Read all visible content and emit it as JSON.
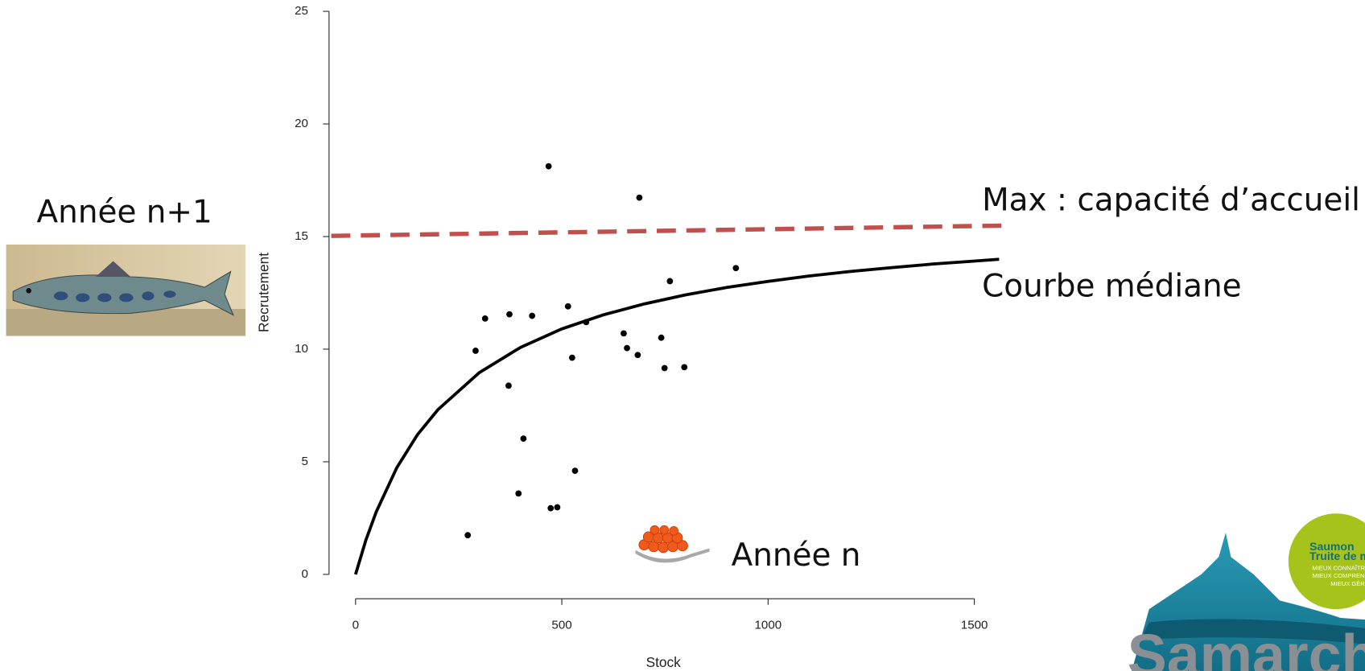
{
  "chart_data": {
    "type": "scatter",
    "xlabel": "Stock",
    "ylabel": "Recrutement",
    "xlim": [
      -60,
      1586
    ],
    "ylim": [
      0,
      25
    ],
    "xticks": [
      0,
      500,
      1000,
      1500
    ],
    "yticks": [
      0,
      5,
      10,
      15,
      20,
      25
    ],
    "grid": false,
    "points": {
      "color": "#000000",
      "x": [
        272,
        291,
        314,
        373,
        371,
        428,
        407,
        395,
        473,
        489,
        468,
        515,
        525,
        532,
        559,
        650,
        658,
        684,
        688,
        741,
        749,
        762,
        797,
        922
      ],
      "values": [
        1.74,
        9.93,
        11.36,
        11.55,
        8.38,
        11.48,
        6.03,
        3.59,
        2.94,
        2.98,
        18.12,
        11.9,
        9.62,
        4.6,
        11.2,
        10.7,
        10.05,
        9.74,
        16.73,
        10.51,
        9.16,
        13.02,
        9.2,
        13.6
      ]
    },
    "series": [
      {
        "name": "Max : capacité d’accueil",
        "color": "#c0504d",
        "dashed": true,
        "x": [
          -59,
          1582
        ],
        "values": [
          15.03,
          15.49
        ]
      },
      {
        "name": "Courbe médiane",
        "color": "#000000",
        "dashed": false,
        "x": [
          0,
          25,
          50,
          100,
          150,
          200,
          300,
          400,
          500,
          600,
          700,
          800,
          900,
          1000,
          1100,
          1200,
          1300,
          1400,
          1500,
          1560
        ],
        "values": [
          0,
          1.52,
          2.77,
          4.74,
          6.2,
          7.32,
          8.96,
          10.08,
          10.9,
          11.52,
          12.01,
          12.41,
          12.74,
          13.01,
          13.25,
          13.45,
          13.62,
          13.78,
          13.91,
          13.99
        ]
      }
    ],
    "annotations": {
      "year_next": "Année n+1",
      "year": "Année n"
    }
  },
  "logo": {
    "circle": [
      "Saumon",
      "Truite de mer"
    ],
    "mottos": [
      "MIEUX CONNAÎTRE",
      "MIEUX COMPRENDRE",
      "MIEUX GÉRER"
    ],
    "name": "Samarch"
  }
}
